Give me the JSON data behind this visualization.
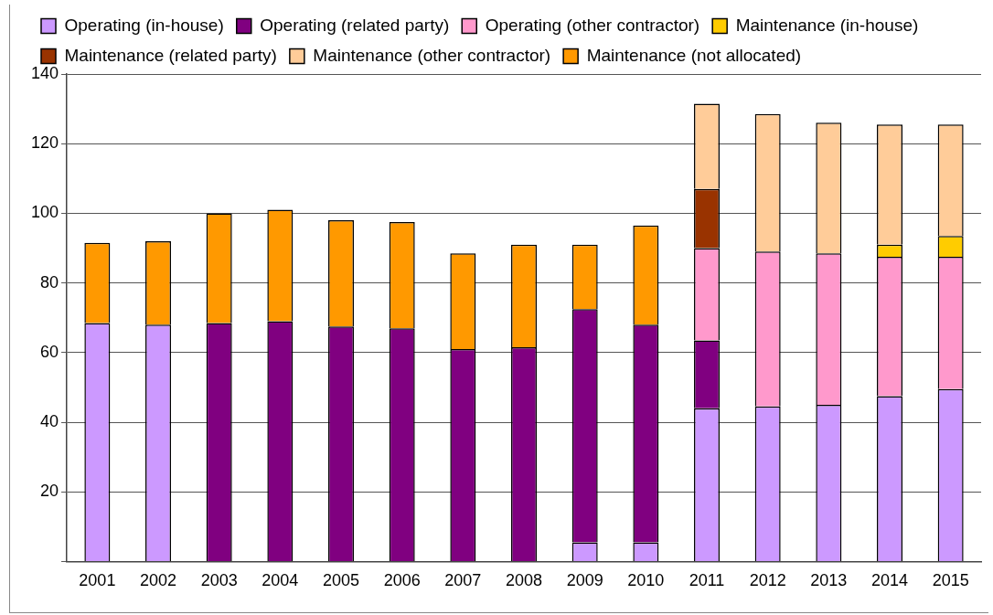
{
  "chart_data": {
    "type": "bar",
    "stacked": true,
    "legend": "top",
    "grid": "y",
    "categories": [
      "2001",
      "2002",
      "2003",
      "2004",
      "2005",
      "2006",
      "2007",
      "2008",
      "2009",
      "2010",
      "2011",
      "2012",
      "2013",
      "2014",
      "2015"
    ],
    "ylim": [
      0,
      140
    ],
    "yticks": [
      {
        "value": 0,
        "label": null
      },
      20,
      40,
      60,
      80,
      100,
      120,
      140
    ],
    "series": [
      {
        "name": "Operating (in-house)",
        "color": "#cc99ff",
        "values": [
          68.5,
          68,
          0,
          0,
          0,
          0,
          0,
          0,
          5.5,
          5.5,
          44,
          44.5,
          45,
          47.5,
          49.5
        ]
      },
      {
        "name": "Operating (related party)",
        "color": "#800080",
        "values": [
          0,
          0,
          68.5,
          69,
          67.5,
          67,
          61,
          61.5,
          67,
          62.5,
          19.5,
          0,
          0,
          0,
          0
        ]
      },
      {
        "name": "Operating (other contractor)",
        "color": "#ff99cc",
        "values": [
          0,
          0,
          0,
          0,
          0,
          0,
          0,
          0,
          0,
          0,
          26.5,
          44.5,
          43.5,
          40,
          38
        ]
      },
      {
        "name": "Maintenance (in-house)",
        "color": "#ffcc00",
        "values": [
          0,
          0,
          0,
          0,
          0,
          0,
          0,
          0,
          0,
          0,
          0,
          0,
          0,
          3.5,
          6
        ]
      },
      {
        "name": "Maintenance (related party)",
        "color": "#993300",
        "values": [
          0,
          0,
          0,
          0,
          0,
          0,
          0,
          0,
          0,
          0,
          17,
          0,
          0,
          0,
          0
        ]
      },
      {
        "name": "Maintenance (other contractor)",
        "color": "#ffcc99",
        "values": [
          0,
          0,
          0,
          0,
          0,
          0,
          0,
          0,
          0,
          0,
          24.5,
          39.5,
          37.5,
          34.5,
          32
        ]
      },
      {
        "name": "Maintenance (not allocated)",
        "color": "#ff9900",
        "values": [
          23,
          24,
          31.5,
          32,
          30.5,
          30.5,
          27.5,
          29.5,
          18.5,
          28.5,
          0,
          0,
          0,
          0,
          0
        ]
      }
    ]
  }
}
